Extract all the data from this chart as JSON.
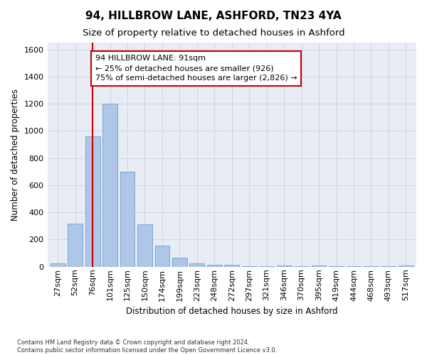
{
  "title_line1": "94, HILLBROW LANE, ASHFORD, TN23 4YA",
  "title_line2": "Size of property relative to detached houses in Ashford",
  "xlabel": "Distribution of detached houses by size in Ashford",
  "ylabel": "Number of detached properties",
  "footnote": "Contains HM Land Registry data © Crown copyright and database right 2024.\nContains public sector information licensed under the Open Government Licence v3.0.",
  "bar_labels": [
    "27sqm",
    "52sqm",
    "76sqm",
    "101sqm",
    "125sqm",
    "150sqm",
    "174sqm",
    "199sqm",
    "223sqm",
    "248sqm",
    "272sqm",
    "297sqm",
    "321sqm",
    "346sqm",
    "370sqm",
    "395sqm",
    "419sqm",
    "444sqm",
    "468sqm",
    "493sqm",
    "517sqm"
  ],
  "bar_values": [
    25,
    320,
    960,
    1200,
    700,
    310,
    155,
    65,
    25,
    15,
    12,
    2,
    2,
    10,
    2,
    8,
    2,
    2,
    2,
    2,
    8
  ],
  "bar_color": "#aec6e8",
  "bar_edge_color": "#6a9fc8",
  "vline_color": "#cc0000",
  "annotation_text": "94 HILLBROW LANE: 91sqm\n← 25% of detached houses are smaller (926)\n75% of semi-detached houses are larger (2,826) →",
  "annotation_box_color": "#ffffff",
  "annotation_box_edge": "#cc0000",
  "ylim": [
    0,
    1650
  ],
  "yticks": [
    0,
    200,
    400,
    600,
    800,
    1000,
    1200,
    1400,
    1600
  ],
  "grid_color": "#c8d0e0",
  "background_color": "#e8edf5",
  "title_fontsize": 11,
  "subtitle_fontsize": 9.5,
  "axis_label_fontsize": 8.5,
  "tick_fontsize": 8,
  "footnote_fontsize": 6
}
